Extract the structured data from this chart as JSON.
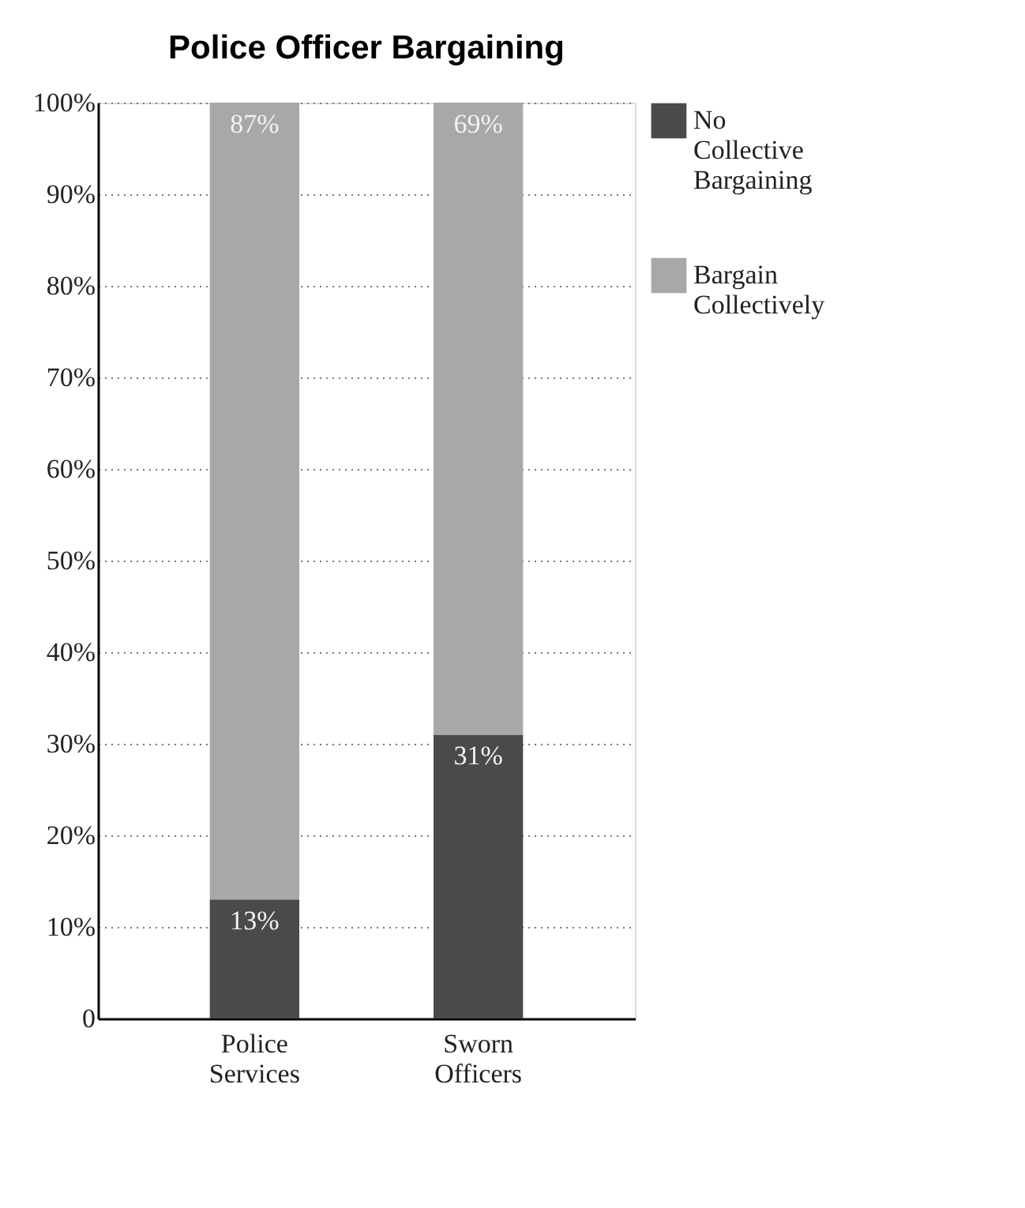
{
  "chart_data": {
    "type": "bar",
    "title": "Police Officer Bargaining",
    "stacked": true,
    "categories": [
      "Police Services",
      "Sworn Officers"
    ],
    "series": [
      {
        "name": "No Collective Bargaining",
        "color": "#4a4a4a",
        "values": [
          13,
          31
        ],
        "value_labels": [
          "13%",
          "31%"
        ]
      },
      {
        "name": "Bargain Collectively",
        "color": "#a8a8a8",
        "values": [
          87,
          69
        ],
        "value_labels": [
          "87%",
          "69%"
        ]
      }
    ],
    "ylim": [
      0,
      100
    ],
    "yticks": [
      0,
      {
        "value": 10,
        "label": "10%"
      },
      {
        "value": 20,
        "label": "20%"
      },
      {
        "value": 30,
        "label": "30%"
      },
      {
        "value": 40,
        "label": "40%"
      },
      {
        "value": 50,
        "label": "50%"
      },
      {
        "value": 60,
        "label": "60%"
      },
      {
        "value": 70,
        "label": "70%"
      },
      {
        "value": 80,
        "label": "80%"
      },
      {
        "value": 90,
        "label": "90%"
      },
      {
        "value": 100,
        "label": "100%"
      }
    ],
    "grid": "y",
    "legend": "right"
  }
}
